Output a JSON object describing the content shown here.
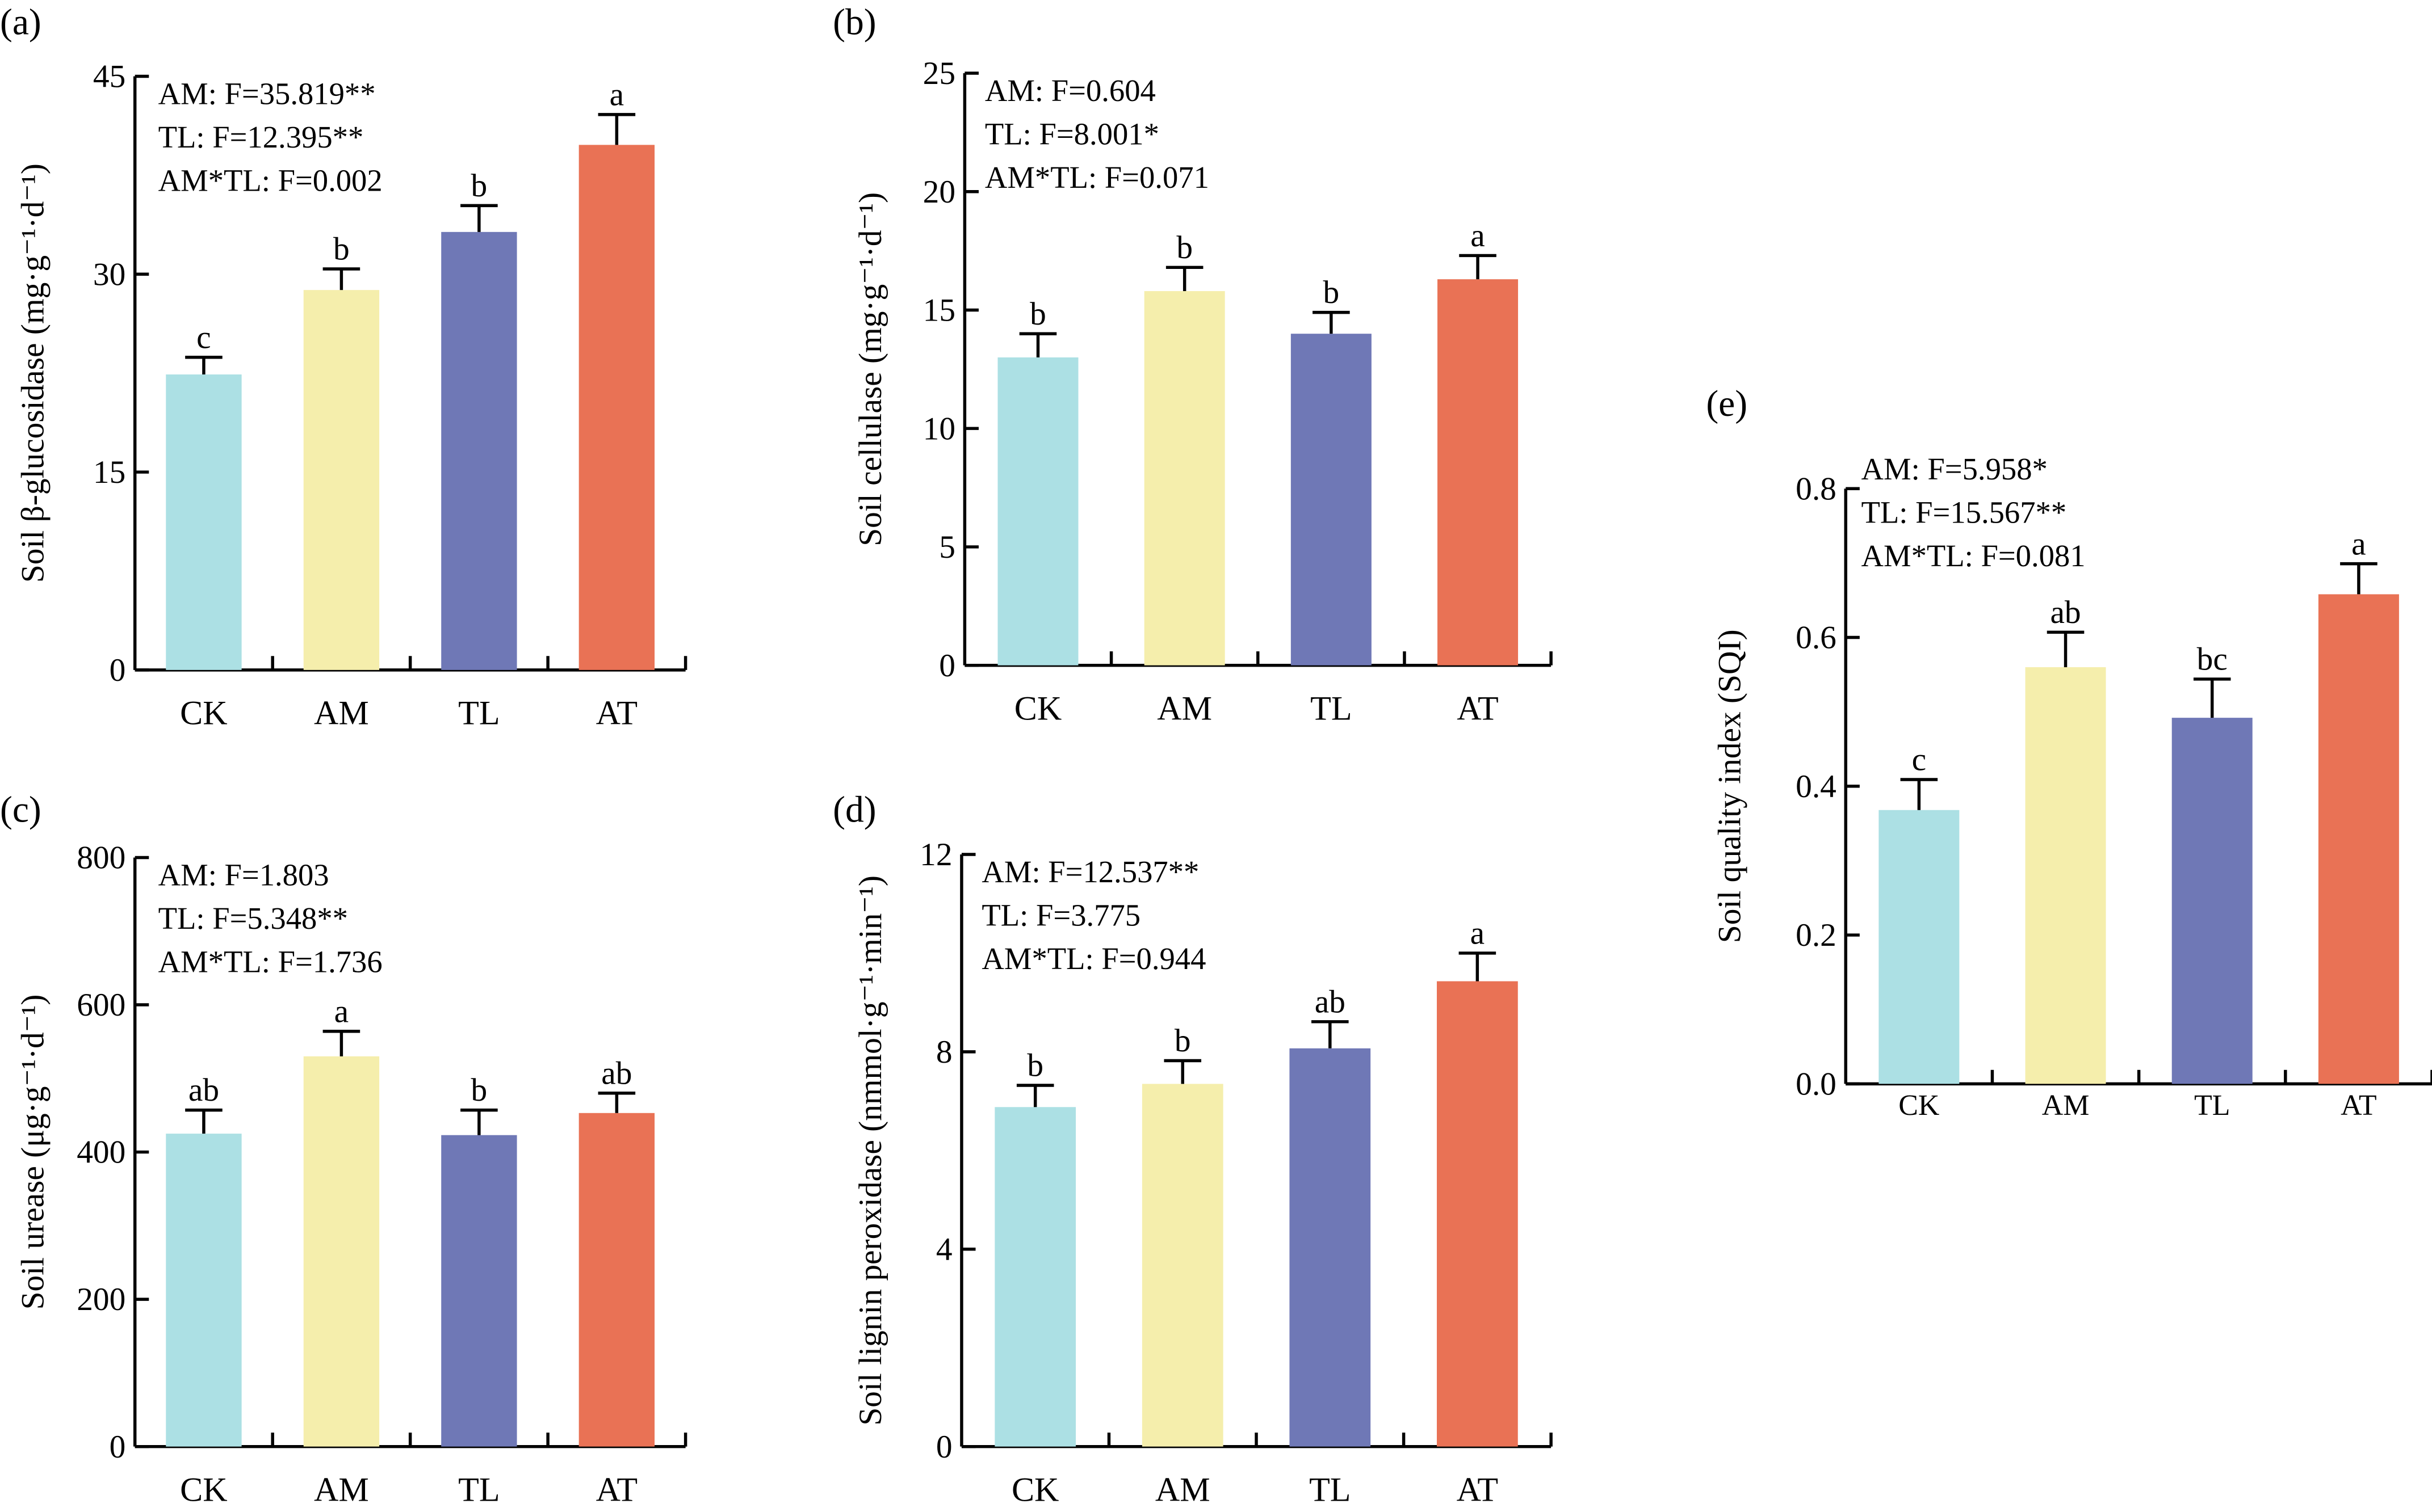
{
  "chart_data": [
    {
      "panel": "(a)",
      "type": "bar",
      "categories": [
        "CK",
        "AM",
        "TL",
        "AT"
      ],
      "values": [
        22.4,
        28.8,
        33.2,
        39.8
      ],
      "errors": [
        1.3,
        1.6,
        2.0,
        2.3
      ],
      "letters": [
        "c",
        "b",
        "b",
        "a"
      ],
      "ylabel": "Soil β-glucosidase (mg·g⁻¹·d⁻¹)",
      "ylim": [
        0,
        45
      ],
      "yticks": [
        0,
        15,
        30,
        45
      ],
      "tick_labels": [
        "0",
        "15",
        "30",
        "45"
      ],
      "stats": [
        "AM: F=35.819**",
        "TL: F=12.395**",
        "AM*TL: F=0.002"
      ]
    },
    {
      "panel": "(b)",
      "type": "bar",
      "categories": [
        "CK",
        "AM",
        "TL",
        "AT"
      ],
      "values": [
        13.0,
        15.8,
        14.0,
        16.3
      ],
      "errors": [
        1.0,
        1.0,
        0.9,
        1.0
      ],
      "letters": [
        "b",
        "b",
        "b",
        "a"
      ],
      "ylabel": "Soil cellulase  (mg·g⁻¹·d⁻¹)",
      "ylim": [
        0,
        25
      ],
      "yticks": [
        0,
        5,
        10,
        15,
        20,
        25
      ],
      "tick_labels": [
        "0",
        "5",
        "10",
        "15",
        "20",
        "25"
      ],
      "stats": [
        "AM: F=0.604",
        "TL: F=8.001*",
        "AM*TL: F=0.071"
      ]
    },
    {
      "panel": "(c)",
      "type": "bar",
      "categories": [
        "CK",
        "AM",
        "TL",
        "AT"
      ],
      "values": [
        425,
        530,
        423,
        453
      ],
      "errors": [
        32,
        34,
        34,
        27
      ],
      "letters": [
        "ab",
        "a",
        "b",
        "ab"
      ],
      "ylabel": "Soil urease (μg·g⁻¹·d⁻¹)",
      "ylim": [
        0,
        800
      ],
      "yticks": [
        0,
        200,
        400,
        600,
        800
      ],
      "tick_labels": [
        "0",
        "200",
        "400",
        "600",
        "800"
      ],
      "stats": [
        "AM: F=1.803",
        "TL: F=5.348**",
        "AM*TL: F=1.736"
      ]
    },
    {
      "panel": "(d)",
      "type": "bar",
      "categories": [
        "CK",
        "AM",
        "TL",
        "AT"
      ],
      "values": [
        6.88,
        7.35,
        8.07,
        9.43
      ],
      "errors": [
        0.44,
        0.47,
        0.54,
        0.57
      ],
      "letters": [
        "b",
        "b",
        "ab",
        "a"
      ],
      "ylabel": "Soil lignin peroxidase (nmmol·g⁻¹·min⁻¹)",
      "ylim": [
        0,
        12
      ],
      "yticks": [
        0,
        4,
        8,
        12
      ],
      "tick_labels": [
        "0",
        "4",
        "8",
        "12"
      ],
      "stats": [
        "AM: F=12.537**",
        "TL: F=3.775",
        "AM*TL: F=0.944"
      ]
    },
    {
      "panel": "(e)",
      "type": "bar",
      "categories": [
        "CK",
        "AM",
        "TL",
        "AT"
      ],
      "values": [
        0.368,
        0.56,
        0.492,
        0.658
      ],
      "errors": [
        0.041,
        0.047,
        0.052,
        0.041
      ],
      "letters": [
        "c",
        "ab",
        "bc",
        "a"
      ],
      "ylabel": "Soil quality index (SQI)",
      "ylim": [
        0,
        0.8
      ],
      "yticks": [
        0,
        0.2,
        0.4,
        0.6,
        0.8
      ],
      "tick_labels": [
        "0.0",
        "0.2",
        "0.4",
        "0.6",
        "0.8"
      ],
      "stats": [
        "AM: F=5.958*",
        "TL: F=15.567**",
        "AM*TL: F=0.081"
      ]
    }
  ],
  "colors": {
    "CK": "#ace0e4",
    "AM": "#f5eeac",
    "TL": "#6f78b6",
    "AT": "#e97255",
    "axis": "#000000"
  }
}
